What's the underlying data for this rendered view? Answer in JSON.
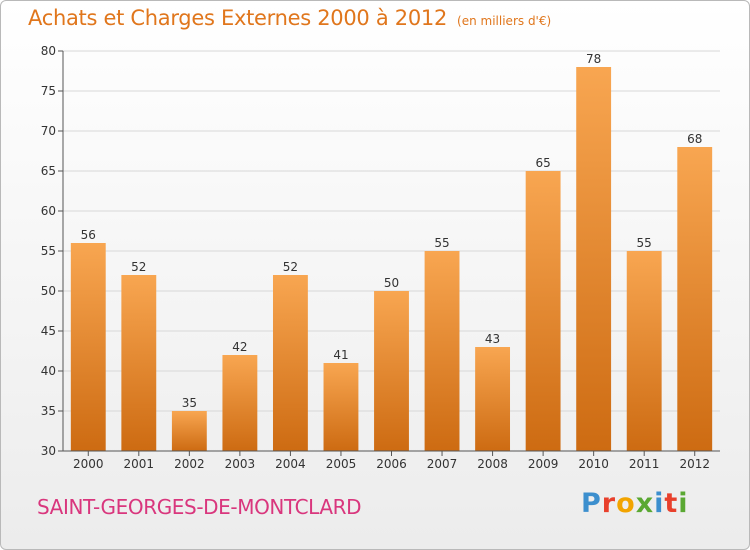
{
  "header": {
    "title": "Achats et Charges Externes 2000 à 2012",
    "unit": "(en milliers d'€)"
  },
  "footer": {
    "commune": "SAINT-GEORGES-DE-MONTCLARD",
    "brand_letters": [
      "P",
      "r",
      "o",
      "x",
      "i",
      "t",
      "i"
    ],
    "brand_colors": [
      "#3c8fce",
      "#e8402c",
      "#f2a400",
      "#5aa832",
      "#3c8fce",
      "#e8402c",
      "#5aa832"
    ]
  },
  "chart_data": {
    "type": "bar",
    "title": "Achats et Charges Externes 2000 à 2012",
    "subtitle": "(en milliers d'€)",
    "categories": [
      "2000",
      "2001",
      "2002",
      "2003",
      "2004",
      "2005",
      "2006",
      "2007",
      "2008",
      "2009",
      "2010",
      "2011",
      "2012"
    ],
    "values": [
      56,
      52,
      35,
      42,
      52,
      41,
      50,
      55,
      43,
      65,
      78,
      55,
      68
    ],
    "ylim": [
      30,
      80
    ],
    "yticks": [
      30,
      35,
      40,
      45,
      50,
      55,
      60,
      65,
      70,
      75,
      80
    ],
    "grid": true,
    "bar_color_top": "#f8a651",
    "bar_color_bottom": "#cd6b12",
    "grid_color": "#d8d8d8"
  }
}
